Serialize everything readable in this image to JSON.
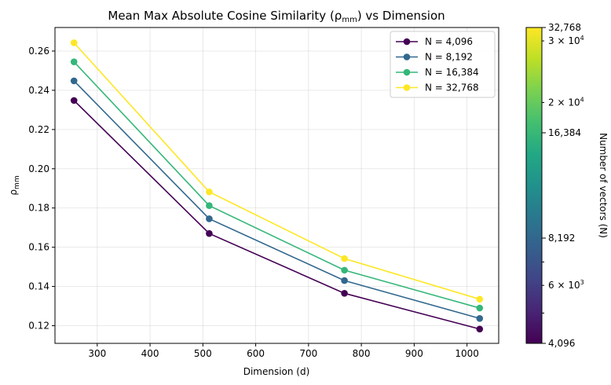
{
  "chart_data": {
    "type": "line",
    "title": "Mean Max Absolute Cosine Similarity (ρ",
    "title_sub": "mm",
    "title_end": ") vs Dimension",
    "xlabel": "Dimension (d)",
    "ylabel": "ρ",
    "ylabel_sub": "mm",
    "xlim": [
      220,
      1060
    ],
    "ylim": [
      0.111,
      0.272
    ],
    "xticks": [
      300,
      400,
      500,
      600,
      700,
      800,
      900,
      1000
    ],
    "yticks": [
      0.12,
      0.14,
      0.16,
      0.18,
      0.2,
      0.22,
      0.24,
      0.26
    ],
    "ytick_labels": [
      "0.12",
      "0.14",
      "0.16",
      "0.18",
      "0.20",
      "0.22",
      "0.24",
      "0.26"
    ],
    "grid": true,
    "legend_position": "top-right",
    "x": [
      256,
      512,
      768,
      1024
    ],
    "series": [
      {
        "name": "N = 4,096",
        "N": 4096,
        "color": "#440154",
        "values": [
          0.2348,
          0.167,
          0.1365,
          0.1183
        ]
      },
      {
        "name": "N = 8,192",
        "N": 8192,
        "color": "#31688e",
        "values": [
          0.2448,
          0.1745,
          0.143,
          0.1237
        ]
      },
      {
        "name": "N = 16,384",
        "N": 16384,
        "color": "#35b779",
        "values": [
          0.2545,
          0.1812,
          0.1483,
          0.129
        ]
      },
      {
        "name": "N = 32,768",
        "N": 32768,
        "color": "#fde725",
        "values": [
          0.2642,
          0.1882,
          0.1542,
          0.1335
        ]
      }
    ],
    "colorbar": {
      "label": "Number of vectors (N)",
      "scale": "log",
      "range": [
        4096,
        32768
      ],
      "ticks": [
        {
          "value": 4096,
          "label": "4,096"
        },
        {
          "value": 8192,
          "label": "8,192"
        },
        {
          "value": 16384,
          "label": "16,384"
        },
        {
          "value": 32768,
          "label": "32,768"
        }
      ],
      "sci_ticks": [
        {
          "value": 6000,
          "base": "6 × 10",
          "exp": "3"
        },
        {
          "value": 20000,
          "base": "2 × 10",
          "exp": "4"
        },
        {
          "value": 30000,
          "base": "3 × 10",
          "exp": "4"
        }
      ],
      "minor_ticks": [
        5000,
        7000
      ]
    }
  }
}
